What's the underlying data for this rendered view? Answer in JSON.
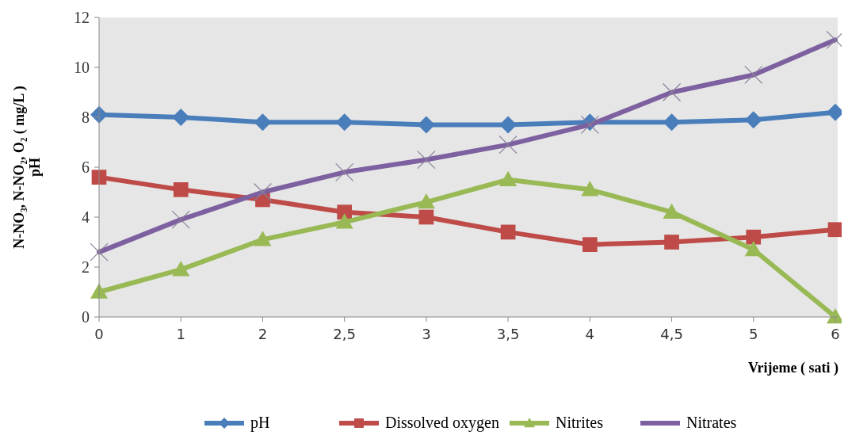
{
  "chart_data": {
    "type": "line",
    "xlabel": "Vrijeme ( sati )",
    "ylabel": "N-NO₃, N-NO₂, O₂ ( mg/L )\npH",
    "categories": [
      "0",
      "1",
      "2",
      "2,5",
      "3",
      "3,5",
      "4",
      "4,5",
      "5",
      "6"
    ],
    "ylim": [
      0,
      12
    ],
    "yticks": [
      0,
      2,
      4,
      6,
      8,
      10,
      12
    ],
    "grid": false,
    "legend": "bottom",
    "line_style": "solid",
    "series": [
      {
        "name": "pH",
        "color": "#4a7ebb",
        "marker": "diamond",
        "values": [
          8.1,
          8.0,
          7.8,
          7.8,
          7.7,
          7.7,
          7.8,
          7.8,
          7.9,
          8.2
        ]
      },
      {
        "name": "Dissolved oxygen",
        "color": "#be4b48",
        "marker": "square",
        "values": [
          5.6,
          5.1,
          4.7,
          4.2,
          4.0,
          3.4,
          2.9,
          3.0,
          3.2,
          3.5
        ]
      },
      {
        "name": "Nitrites",
        "color": "#98b954",
        "marker": "triangle",
        "values": [
          1.0,
          1.9,
          3.1,
          3.8,
          4.6,
          5.5,
          5.1,
          4.2,
          2.7,
          0.0
        ]
      },
      {
        "name": "Nitrates",
        "color": "#7d60a0",
        "marker": "cross",
        "values": [
          2.6,
          3.9,
          5.0,
          5.8,
          6.3,
          6.9,
          7.7,
          9.0,
          9.7,
          11.1
        ]
      }
    ]
  }
}
